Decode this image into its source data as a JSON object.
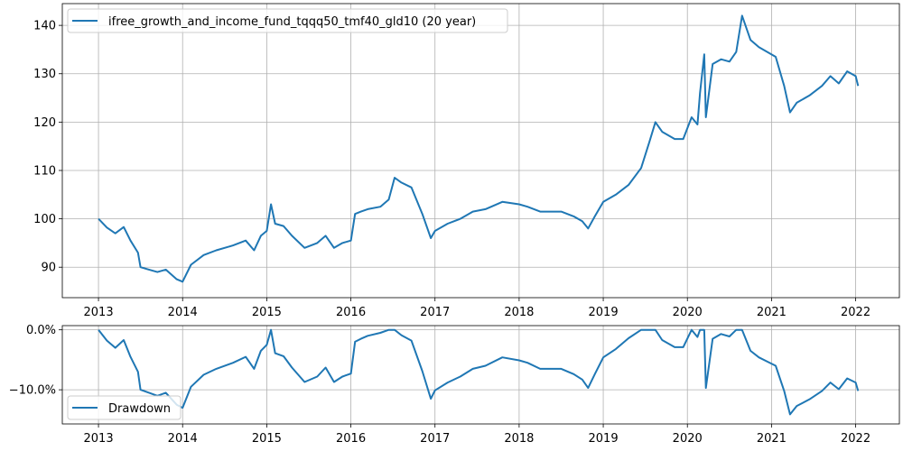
{
  "chart_data": [
    {
      "type": "line",
      "title": "",
      "xlabel": "",
      "ylabel": "",
      "x_tick_labels": [
        "2013",
        "2014",
        "2015",
        "2016",
        "2017",
        "2018",
        "2019",
        "2020",
        "2021",
        "2022"
      ],
      "y_ticks": [
        90,
        100,
        110,
        120,
        130,
        140
      ],
      "xlim": [
        2012.57,
        2022.52
      ],
      "ylim": [
        83.7,
        144.5
      ],
      "grid": true,
      "legend_position": "top-left",
      "series": [
        {
          "name": "ifree_growth_and_income_fund_tqqq50_tmf40_gld10 (20 year)",
          "color": "#1f77b4",
          "x": [
            2013.0,
            2013.1,
            2013.2,
            2013.3,
            2013.38,
            2013.47,
            2013.5,
            2013.6,
            2013.7,
            2013.8,
            2013.93,
            2014.0,
            2014.1,
            2014.25,
            2014.4,
            2014.6,
            2014.75,
            2014.85,
            2014.93,
            2015.0,
            2015.05,
            2015.1,
            2015.2,
            2015.3,
            2015.45,
            2015.6,
            2015.7,
            2015.8,
            2015.9,
            2016.0,
            2016.05,
            2016.12,
            2016.2,
            2016.35,
            2016.45,
            2016.52,
            2016.6,
            2016.72,
            2016.85,
            2016.95,
            2017.0,
            2017.15,
            2017.3,
            2017.45,
            2017.6,
            2017.8,
            2018.0,
            2018.1,
            2018.25,
            2018.5,
            2018.65,
            2018.75,
            2018.82,
            2018.9,
            2019.0,
            2019.15,
            2019.3,
            2019.45,
            2019.55,
            2019.62,
            2019.7,
            2019.85,
            2019.95,
            2020.05,
            2020.12,
            2020.15,
            2020.2,
            2020.22,
            2020.3,
            2020.4,
            2020.5,
            2020.58,
            2020.65,
            2020.75,
            2020.85,
            2020.95,
            2021.05,
            2021.15,
            2021.22,
            2021.3,
            2021.45,
            2021.6,
            2021.7,
            2021.8,
            2021.9,
            2022.0,
            2022.03
          ],
          "values": [
            100.0,
            98.2,
            97.0,
            98.3,
            95.5,
            93.0,
            90.0,
            89.5,
            89.0,
            89.5,
            87.5,
            87.0,
            90.5,
            92.5,
            93.5,
            94.5,
            95.5,
            93.5,
            96.5,
            97.5,
            103.0,
            99.0,
            98.5,
            96.5,
            94.0,
            95.0,
            96.5,
            94.0,
            95.0,
            95.5,
            101.0,
            101.5,
            102.0,
            102.5,
            104.0,
            108.5,
            107.5,
            106.5,
            101.0,
            96.0,
            97.5,
            99.0,
            100.0,
            101.5,
            102.0,
            103.5,
            103.0,
            102.5,
            101.5,
            101.5,
            100.5,
            99.5,
            98.0,
            100.5,
            103.5,
            105.0,
            107.0,
            110.5,
            116.0,
            120.0,
            118.0,
            116.5,
            116.5,
            121.0,
            119.5,
            126.0,
            134.0,
            121.0,
            132.0,
            133.0,
            132.5,
            134.5,
            142.0,
            137.0,
            135.5,
            134.5,
            133.5,
            127.5,
            122.0,
            124.0,
            125.5,
            127.5,
            129.5,
            128.0,
            130.5,
            129.5,
            127.5
          ]
        }
      ]
    },
    {
      "type": "line",
      "title": "",
      "xlabel": "",
      "ylabel": "",
      "x_tick_labels": [
        "2013",
        "2014",
        "2015",
        "2016",
        "2017",
        "2018",
        "2019",
        "2020",
        "2021",
        "2022"
      ],
      "y_tick_labels": [
        "0.0%",
        "−10.0%"
      ],
      "y_ticks": [
        0,
        -10
      ],
      "xlim": [
        2012.57,
        2022.52
      ],
      "ylim": [
        -15.7,
        0.7
      ],
      "grid": true,
      "legend_position": "bottom-left",
      "series": [
        {
          "name": "Drawdown",
          "color": "#1f77b4",
          "x": [
            2013.0,
            2013.1,
            2013.2,
            2013.3,
            2013.38,
            2013.47,
            2013.5,
            2013.6,
            2013.7,
            2013.8,
            2013.93,
            2014.0,
            2014.1,
            2014.25,
            2014.4,
            2014.6,
            2014.75,
            2014.85,
            2014.93,
            2015.0,
            2015.05,
            2015.1,
            2015.2,
            2015.3,
            2015.45,
            2015.6,
            2015.7,
            2015.8,
            2015.9,
            2016.0,
            2016.05,
            2016.12,
            2016.2,
            2016.35,
            2016.45,
            2016.52,
            2016.6,
            2016.72,
            2016.85,
            2016.95,
            2017.0,
            2017.15,
            2017.3,
            2017.45,
            2017.6,
            2017.8,
            2018.0,
            2018.1,
            2018.25,
            2018.5,
            2018.65,
            2018.75,
            2018.82,
            2018.9,
            2019.0,
            2019.15,
            2019.3,
            2019.45,
            2019.55,
            2019.62,
            2019.7,
            2019.85,
            2019.95,
            2020.05,
            2020.12,
            2020.15,
            2020.2,
            2020.22,
            2020.3,
            2020.4,
            2020.5,
            2020.58,
            2020.65,
            2020.75,
            2020.85,
            2020.95,
            2021.05,
            2021.15,
            2021.22,
            2021.3,
            2021.45,
            2021.6,
            2021.7,
            2021.8,
            2021.9,
            2022.0,
            2022.03
          ],
          "values": [
            0.0,
            -1.8,
            -3.0,
            -1.7,
            -4.5,
            -7.0,
            -10.0,
            -10.5,
            -11.0,
            -10.5,
            -12.5,
            -13.0,
            -9.5,
            -7.5,
            -6.5,
            -5.5,
            -4.5,
            -6.5,
            -3.5,
            -2.5,
            0.0,
            -3.9,
            -4.4,
            -6.3,
            -8.7,
            -7.8,
            -6.3,
            -8.7,
            -7.8,
            -7.3,
            -2.0,
            -1.5,
            -1.0,
            -0.5,
            0.0,
            0.0,
            -0.9,
            -1.8,
            -6.9,
            -11.5,
            -10.1,
            -8.8,
            -7.8,
            -6.5,
            -6.0,
            -4.6,
            -5.1,
            -5.5,
            -6.5,
            -6.5,
            -7.4,
            -8.3,
            -9.7,
            -7.4,
            -4.6,
            -3.2,
            -1.4,
            0.0,
            0.0,
            0.0,
            -1.7,
            -2.9,
            -2.9,
            0.0,
            -1.2,
            0.0,
            0.0,
            -9.7,
            -1.5,
            -0.7,
            -1.1,
            0.0,
            0.0,
            -3.5,
            -4.6,
            -5.3,
            -6.0,
            -10.2,
            -14.1,
            -12.7,
            -11.6,
            -10.2,
            -8.8,
            -9.9,
            -8.1,
            -8.8,
            -10.2
          ]
        }
      ]
    }
  ]
}
